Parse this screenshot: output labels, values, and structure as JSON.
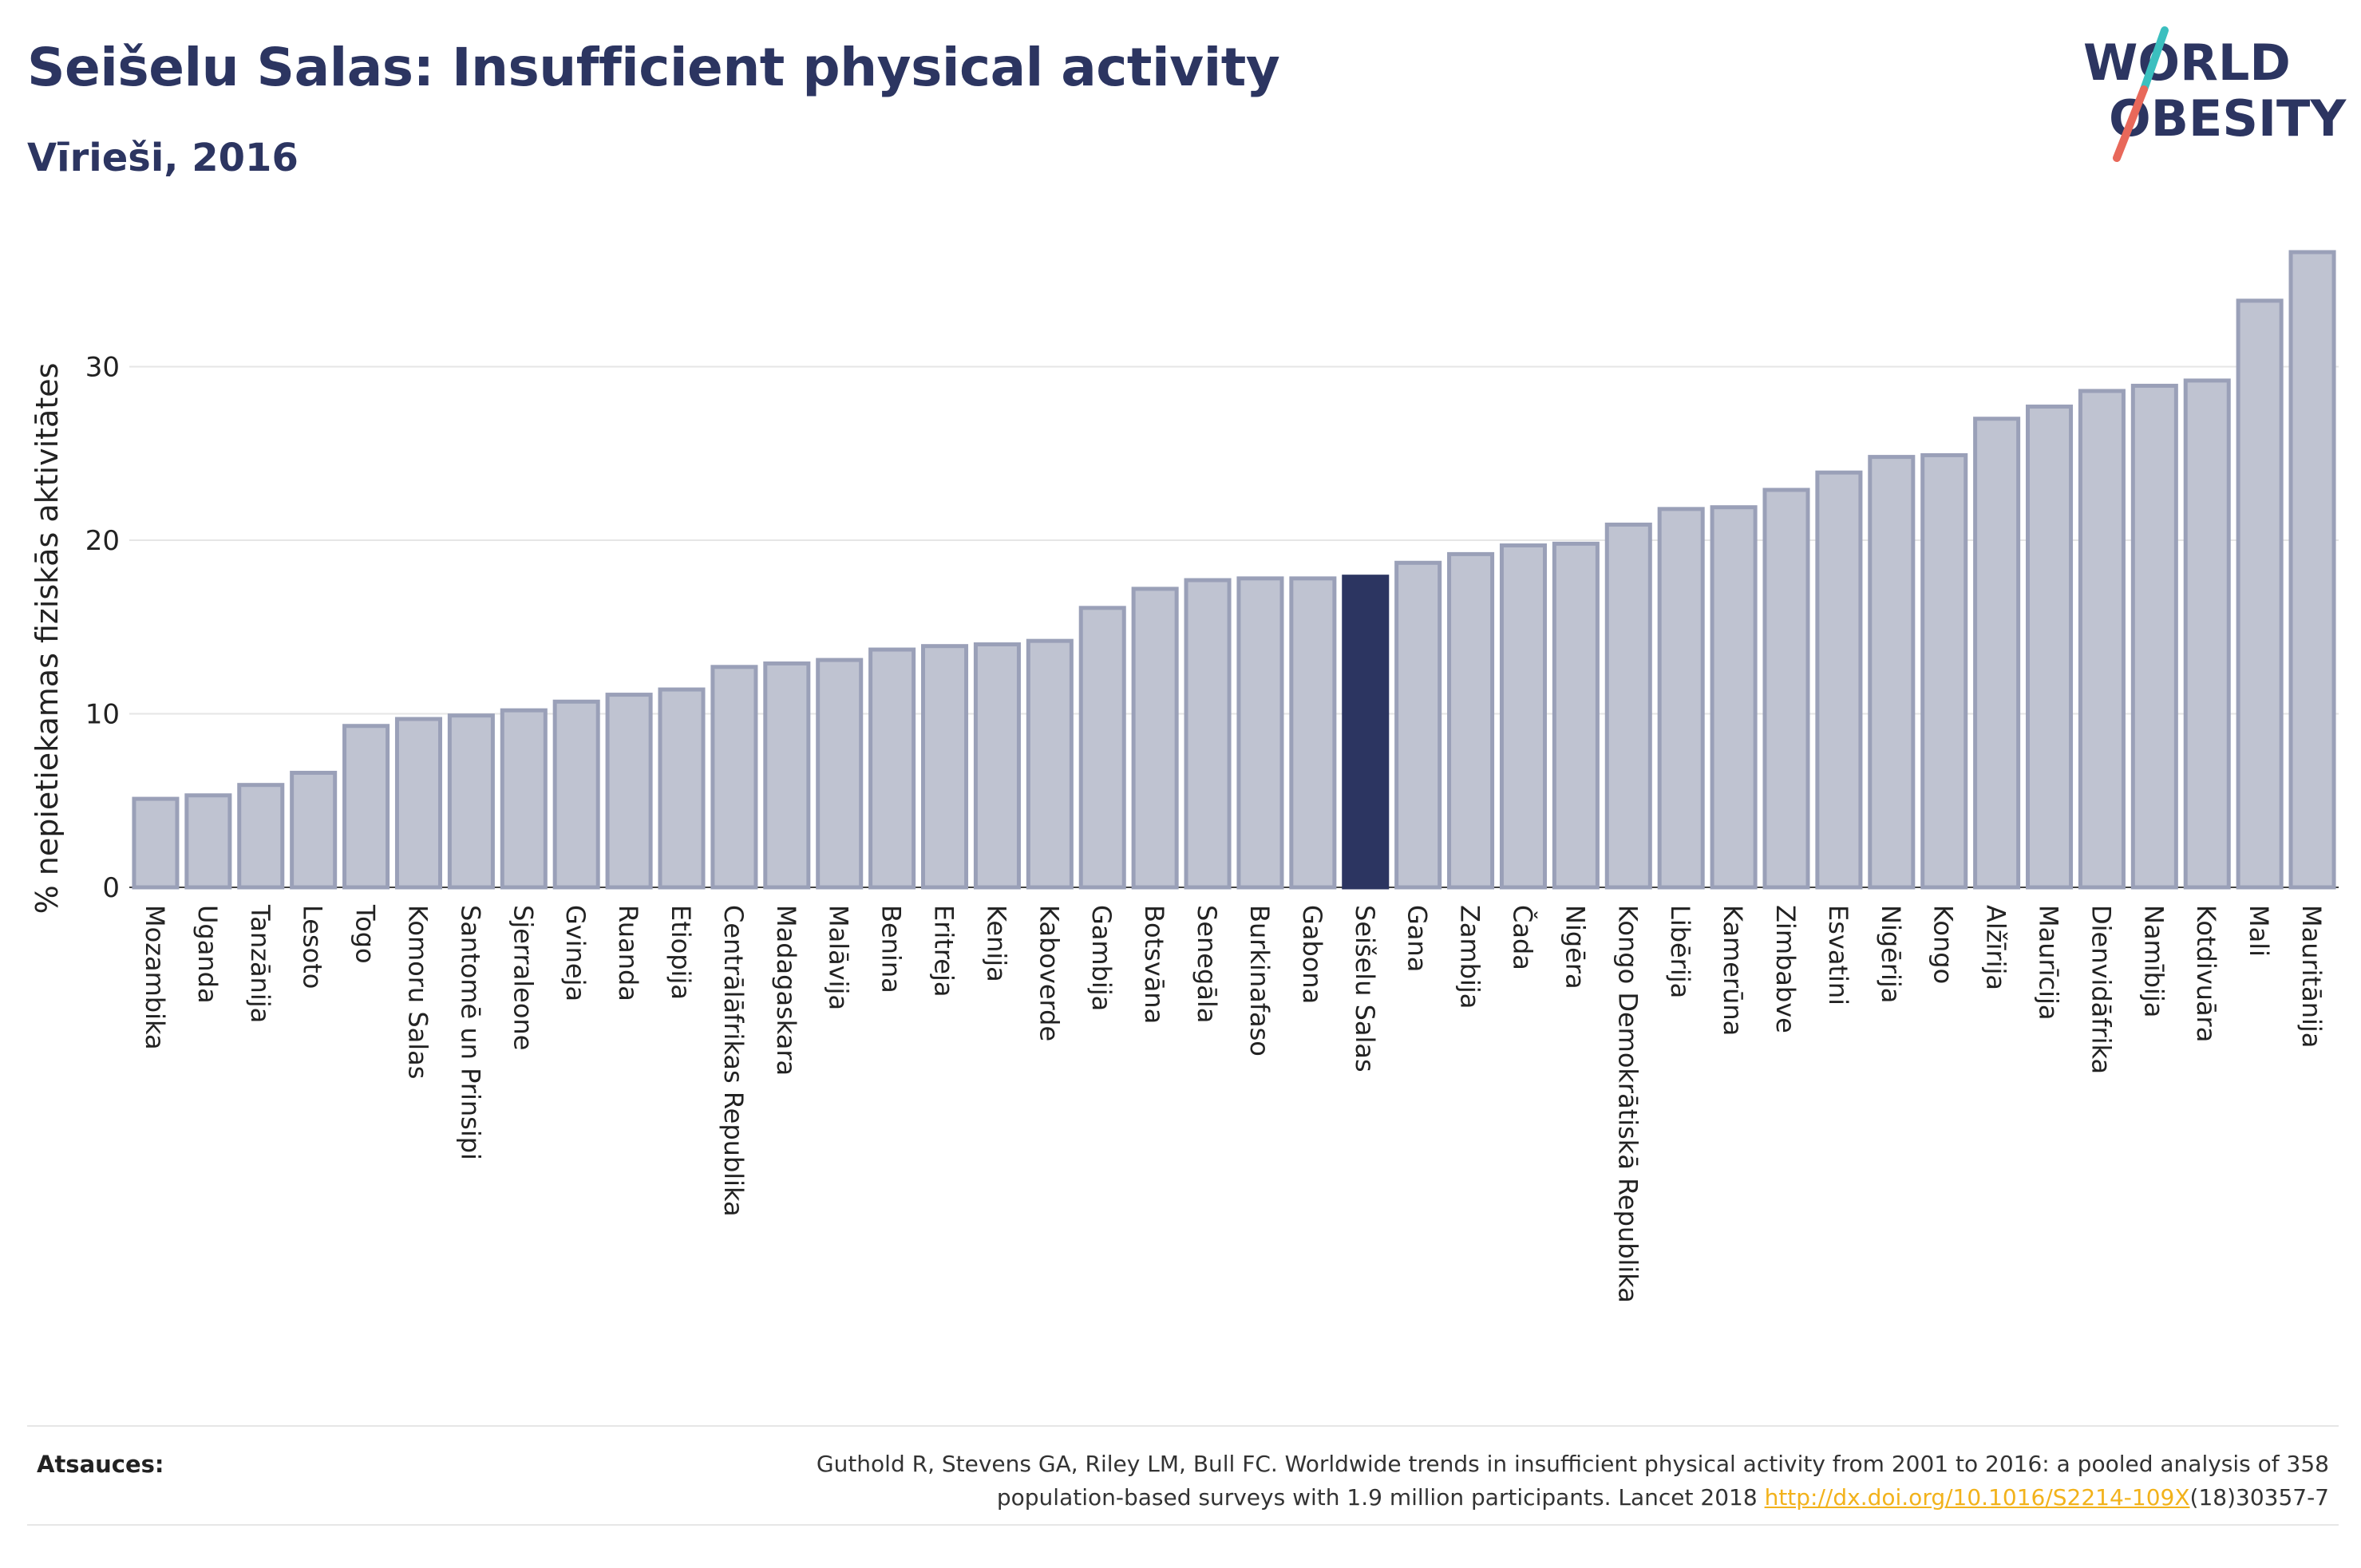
{
  "header": {
    "title": "Seišelu Salas: Insufficient physical activity",
    "subtitle": "Vīrieši, 2016"
  },
  "logo": {
    "line1": "WORLD",
    "line2": "OBESITY",
    "colors": {
      "text": "#2c3561",
      "slash_top": "#3bbfbf",
      "slash_bottom": "#e8685a"
    }
  },
  "colors": {
    "bar": "#bfc3d1",
    "bar_stroke": "#9aa0b8",
    "highlight": "#2c3561",
    "grid": "#e6e6e6"
  },
  "chart_data": {
    "type": "bar",
    "title": "",
    "xlabel": "",
    "ylabel": "% nepietiekamas fiziskās aktivitātes",
    "ylim": [
      0,
      37
    ],
    "yticks": [
      0,
      10,
      20,
      30
    ],
    "grid": true,
    "highlight": "Seišelu Salas",
    "categories": [
      "Mozambika",
      "Uganda",
      "Tanzānija",
      "Lesoto",
      "Togo",
      "Komoru Salas",
      "Santomē un Prinsipi",
      "Sjerraleone",
      "Gvineja",
      "Ruanda",
      "Etiopija",
      "Centrālāfrikas Republika",
      "Madagaskara",
      "Malāvija",
      "Benina",
      "Eritreja",
      "Kenija",
      "Kaboverde",
      "Gambija",
      "Botsvāna",
      "Senegāla",
      "Burkinafaso",
      "Gabona",
      "Seišelu Salas",
      "Gana",
      "Zambija",
      "Čada",
      "Nigēra",
      "Kongo Demokrātiskā Republika",
      "Libērija",
      "Kamerūna",
      "Zimbabve",
      "Esvatini",
      "Nigērija",
      "Kongo",
      "Alžīrija",
      "Maurīcija",
      "Dienvidāfrika",
      "Namībija",
      "Kotdivuāra",
      "Mali",
      "Mauritānija"
    ],
    "values": [
      5.1,
      5.3,
      5.9,
      6.6,
      9.3,
      9.7,
      9.9,
      10.2,
      10.7,
      11.1,
      11.4,
      12.7,
      12.9,
      13.1,
      13.7,
      13.9,
      14.0,
      14.2,
      16.1,
      17.2,
      17.7,
      17.8,
      17.8,
      17.9,
      18.7,
      19.2,
      19.7,
      19.8,
      20.9,
      21.8,
      21.9,
      22.9,
      23.9,
      24.8,
      24.9,
      27.0,
      27.7,
      28.6,
      28.9,
      29.2,
      33.8,
      36.6
    ]
  },
  "footer": {
    "sources_label": "Atsauces:",
    "citation_line1": "Guthold R, Stevens GA, Riley LM, Bull FC. Worldwide trends in insufficient physical activity from 2001 to 2016: a pooled analysis of 358",
    "citation_line2_prefix": "population-based surveys with 1.9 million participants. Lancet 2018 ",
    "citation_link": "http://dx.doi.org/10.1016/S2214-109X",
    "citation_line2_suffix": "(18)30357-7"
  }
}
